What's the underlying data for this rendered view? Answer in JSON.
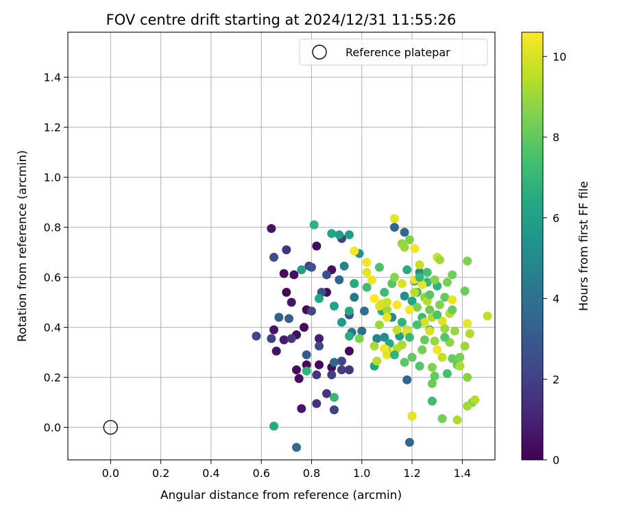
{
  "chart_data": {
    "type": "scatter",
    "title": "FOV centre drift starting at 2024/12/31 11:55:26",
    "xlabel": "Angular distance from reference (arcmin)",
    "ylabel": "Rotation from reference (arcmin)",
    "xlim": [
      -0.17,
      1.53
    ],
    "ylim": [
      -0.13,
      1.58
    ],
    "xticks": [
      0.0,
      0.2,
      0.4,
      0.6,
      0.8,
      1.0,
      1.2,
      1.4
    ],
    "xtick_labels": [
      "0.0",
      "0.2",
      "0.4",
      "0.6",
      "0.8",
      "1.0",
      "1.2",
      "1.4"
    ],
    "yticks": [
      0.0,
      0.2,
      0.4,
      0.6,
      0.8,
      1.0,
      1.2,
      1.4
    ],
    "ytick_labels": [
      "0.0",
      "0.2",
      "0.4",
      "0.6",
      "0.8",
      "1.0",
      "1.2",
      "1.4"
    ],
    "grid": true,
    "legend_position": "top-right",
    "reference": {
      "name": "Reference platepar",
      "x": 0.0,
      "y": 0.0
    },
    "colorbar": {
      "label": "Hours from first FF file",
      "min": 0,
      "max": 10.6,
      "ticks": [
        0,
        2,
        4,
        6,
        8,
        10
      ],
      "tick_labels": [
        "0",
        "2",
        "4",
        "6",
        "8",
        "10"
      ],
      "colormap": "viridis"
    },
    "points": [
      {
        "x": 0.64,
        "y": 0.795,
        "t": 0.5
      },
      {
        "x": 0.73,
        "y": 0.61,
        "t": 0.4
      },
      {
        "x": 0.69,
        "y": 0.615,
        "t": 0.3
      },
      {
        "x": 0.7,
        "y": 0.54,
        "t": 0.2
      },
      {
        "x": 0.82,
        "y": 0.725,
        "t": 0.3
      },
      {
        "x": 0.78,
        "y": 0.47,
        "t": 0.2
      },
      {
        "x": 0.77,
        "y": 0.4,
        "t": 0.3
      },
      {
        "x": 0.74,
        "y": 0.37,
        "t": 0.4
      },
      {
        "x": 0.65,
        "y": 0.39,
        "t": 0.6
      },
      {
        "x": 0.69,
        "y": 0.35,
        "t": 0.8
      },
      {
        "x": 0.66,
        "y": 0.305,
        "t": 0.5
      },
      {
        "x": 0.74,
        "y": 0.23,
        "t": 0.3
      },
      {
        "x": 0.75,
        "y": 0.195,
        "t": 0.4
      },
      {
        "x": 0.76,
        "y": 0.075,
        "t": 0.6
      },
      {
        "x": 0.78,
        "y": 0.25,
        "t": 0.2
      },
      {
        "x": 0.83,
        "y": 0.25,
        "t": 0.2
      },
      {
        "x": 0.83,
        "y": 0.355,
        "t": 0.9
      },
      {
        "x": 0.86,
        "y": 0.54,
        "t": 0.3
      },
      {
        "x": 0.88,
        "y": 0.63,
        "t": 0.3
      },
      {
        "x": 0.88,
        "y": 0.24,
        "t": 0.3
      },
      {
        "x": 0.95,
        "y": 0.305,
        "t": 0.3
      },
      {
        "x": 0.72,
        "y": 0.5,
        "t": 0.6
      },
      {
        "x": 0.7,
        "y": 0.71,
        "t": 1.6
      },
      {
        "x": 0.65,
        "y": 0.68,
        "t": 2.5
      },
      {
        "x": 0.58,
        "y": 0.365,
        "t": 2.2
      },
      {
        "x": 0.64,
        "y": 0.355,
        "t": 2.0
      },
      {
        "x": 0.72,
        "y": 0.355,
        "t": 1.8
      },
      {
        "x": 0.82,
        "y": 0.21,
        "t": 1.7
      },
      {
        "x": 0.82,
        "y": 0.095,
        "t": 1.5
      },
      {
        "x": 0.86,
        "y": 0.135,
        "t": 1.6
      },
      {
        "x": 0.89,
        "y": 0.07,
        "t": 2.1
      },
      {
        "x": 0.88,
        "y": 0.21,
        "t": 1.9
      },
      {
        "x": 0.92,
        "y": 0.23,
        "t": 2.0
      },
      {
        "x": 0.95,
        "y": 0.23,
        "t": 1.7
      },
      {
        "x": 0.92,
        "y": 0.265,
        "t": 2.2
      },
      {
        "x": 0.83,
        "y": 0.325,
        "t": 2.4
      },
      {
        "x": 0.8,
        "y": 0.465,
        "t": 2.3
      },
      {
        "x": 0.84,
        "y": 0.54,
        "t": 2.7
      },
      {
        "x": 0.86,
        "y": 0.61,
        "t": 2.5
      },
      {
        "x": 0.79,
        "y": 0.645,
        "t": 2.0
      },
      {
        "x": 0.8,
        "y": 0.64,
        "t": 2.8
      },
      {
        "x": 0.92,
        "y": 0.755,
        "t": 2.0
      },
      {
        "x": 0.95,
        "y": 0.45,
        "t": 2.6
      },
      {
        "x": 0.78,
        "y": 0.29,
        "t": 3.0
      },
      {
        "x": 0.71,
        "y": 0.435,
        "t": 3.1
      },
      {
        "x": 0.67,
        "y": 0.44,
        "t": 3.3
      },
      {
        "x": 0.91,
        "y": 0.59,
        "t": 3.4
      },
      {
        "x": 0.89,
        "y": 0.26,
        "t": 3.6
      },
      {
        "x": 0.74,
        "y": -0.08,
        "t": 3.7
      },
      {
        "x": 1.19,
        "y": -0.06,
        "t": 3.5
      },
      {
        "x": 1.18,
        "y": 0.19,
        "t": 3.6
      },
      {
        "x": 1.2,
        "y": 0.045,
        "t": 3.2
      },
      {
        "x": 1.13,
        "y": 0.8,
        "t": 3.5
      },
      {
        "x": 1.17,
        "y": 0.78,
        "t": 3.4
      },
      {
        "x": 1.0,
        "y": 0.385,
        "t": 3.8
      },
      {
        "x": 1.01,
        "y": 0.465,
        "t": 4.0
      },
      {
        "x": 0.97,
        "y": 0.52,
        "t": 4.3
      },
      {
        "x": 0.93,
        "y": 0.645,
        "t": 4.6
      },
      {
        "x": 0.96,
        "y": 0.38,
        "t": 4.1
      },
      {
        "x": 1.06,
        "y": 0.355,
        "t": 4.8
      },
      {
        "x": 1.09,
        "y": 0.36,
        "t": 5.0
      },
      {
        "x": 1.12,
        "y": 0.44,
        "t": 4.9
      },
      {
        "x": 1.17,
        "y": 0.525,
        "t": 5.2
      },
      {
        "x": 1.21,
        "y": 0.585,
        "t": 5.4
      },
      {
        "x": 1.23,
        "y": 0.62,
        "t": 5.1
      },
      {
        "x": 0.97,
        "y": 0.575,
        "t": 5.3
      },
      {
        "x": 0.99,
        "y": 0.695,
        "t": 5.5
      },
      {
        "x": 0.95,
        "y": 0.77,
        "t": 5.8
      },
      {
        "x": 0.91,
        "y": 0.77,
        "t": 6.0
      },
      {
        "x": 0.88,
        "y": 0.775,
        "t": 6.2
      },
      {
        "x": 0.81,
        "y": 0.81,
        "t": 6.8
      },
      {
        "x": 0.76,
        "y": 0.63,
        "t": 5.9
      },
      {
        "x": 0.83,
        "y": 0.515,
        "t": 6.3
      },
      {
        "x": 0.89,
        "y": 0.485,
        "t": 6.1
      },
      {
        "x": 0.92,
        "y": 0.42,
        "t": 5.7
      },
      {
        "x": 0.95,
        "y": 0.465,
        "t": 6.4
      },
      {
        "x": 0.95,
        "y": 0.365,
        "t": 6.6
      },
      {
        "x": 0.78,
        "y": 0.225,
        "t": 6.9
      },
      {
        "x": 0.89,
        "y": 0.12,
        "t": 7.0
      },
      {
        "x": 0.65,
        "y": 0.005,
        "t": 6.5
      },
      {
        "x": 1.05,
        "y": 0.245,
        "t": 6.2
      },
      {
        "x": 1.08,
        "y": 0.465,
        "t": 6.7
      },
      {
        "x": 1.11,
        "y": 0.335,
        "t": 6.4
      },
      {
        "x": 1.15,
        "y": 0.365,
        "t": 6.0
      },
      {
        "x": 1.16,
        "y": 0.42,
        "t": 6.8
      },
      {
        "x": 1.18,
        "y": 0.63,
        "t": 6.6
      },
      {
        "x": 1.2,
        "y": 0.505,
        "t": 6.2
      },
      {
        "x": 1.22,
        "y": 0.54,
        "t": 7.1
      },
      {
        "x": 1.24,
        "y": 0.44,
        "t": 7.2
      },
      {
        "x": 1.26,
        "y": 0.58,
        "t": 6.9
      },
      {
        "x": 1.28,
        "y": 0.105,
        "t": 7.3
      },
      {
        "x": 1.27,
        "y": 0.39,
        "t": 7.0
      },
      {
        "x": 1.3,
        "y": 0.565,
        "t": 6.8
      },
      {
        "x": 1.34,
        "y": 0.215,
        "t": 7.4
      },
      {
        "x": 1.02,
        "y": 0.56,
        "t": 7.3
      },
      {
        "x": 1.07,
        "y": 0.64,
        "t": 7.6
      },
      {
        "x": 1.12,
        "y": 0.575,
        "t": 7.8
      },
      {
        "x": 1.17,
        "y": 0.26,
        "t": 7.9
      },
      {
        "x": 1.2,
        "y": 0.28,
        "t": 8.0
      },
      {
        "x": 1.23,
        "y": 0.245,
        "t": 7.7
      },
      {
        "x": 1.25,
        "y": 0.35,
        "t": 8.1
      },
      {
        "x": 1.28,
        "y": 0.175,
        "t": 8.2
      },
      {
        "x": 1.29,
        "y": 0.205,
        "t": 8.0
      },
      {
        "x": 1.32,
        "y": 0.035,
        "t": 8.3
      },
      {
        "x": 1.36,
        "y": 0.275,
        "t": 8.1
      },
      {
        "x": 1.38,
        "y": 0.25,
        "t": 7.9
      },
      {
        "x": 1.39,
        "y": 0.28,
        "t": 8.4
      },
      {
        "x": 1.41,
        "y": 0.545,
        "t": 8.2
      },
      {
        "x": 1.42,
        "y": 0.665,
        "t": 8.5
      },
      {
        "x": 1.36,
        "y": 0.61,
        "t": 8.3
      },
      {
        "x": 1.33,
        "y": 0.52,
        "t": 8.0
      },
      {
        "x": 1.31,
        "y": 0.49,
        "t": 8.6
      },
      {
        "x": 1.29,
        "y": 0.59,
        "t": 8.7
      },
      {
        "x": 1.27,
        "y": 0.47,
        "t": 8.2
      },
      {
        "x": 1.25,
        "y": 0.52,
        "t": 8.8
      },
      {
        "x": 1.22,
        "y": 0.48,
        "t": 8.4
      },
      {
        "x": 1.19,
        "y": 0.75,
        "t": 8.6
      },
      {
        "x": 1.17,
        "y": 0.72,
        "t": 9.0
      },
      {
        "x": 1.16,
        "y": 0.735,
        "t": 8.9
      },
      {
        "x": 1.13,
        "y": 0.6,
        "t": 8.7
      },
      {
        "x": 1.1,
        "y": 0.47,
        "t": 9.1
      },
      {
        "x": 1.07,
        "y": 0.41,
        "t": 9.0
      },
      {
        "x": 1.05,
        "y": 0.325,
        "t": 9.2
      },
      {
        "x": 1.06,
        "y": 0.265,
        "t": 9.4
      },
      {
        "x": 1.1,
        "y": 0.31,
        "t": 9.3
      },
      {
        "x": 1.14,
        "y": 0.315,
        "t": 9.5
      },
      {
        "x": 1.16,
        "y": 0.33,
        "t": 9.2
      },
      {
        "x": 1.18,
        "y": 0.39,
        "t": 9.6
      },
      {
        "x": 1.21,
        "y": 0.54,
        "t": 9.4
      },
      {
        "x": 1.23,
        "y": 0.65,
        "t": 9.7
      },
      {
        "x": 1.26,
        "y": 0.505,
        "t": 9.5
      },
      {
        "x": 1.28,
        "y": 0.44,
        "t": 9.3
      },
      {
        "x": 1.3,
        "y": 0.68,
        "t": 9.8
      },
      {
        "x": 1.31,
        "y": 0.67,
        "t": 9.1
      },
      {
        "x": 1.33,
        "y": 0.395,
        "t": 9.0
      },
      {
        "x": 1.35,
        "y": 0.34,
        "t": 8.8
      },
      {
        "x": 1.37,
        "y": 0.385,
        "t": 8.9
      },
      {
        "x": 1.39,
        "y": 0.245,
        "t": 9.2
      },
      {
        "x": 1.41,
        "y": 0.325,
        "t": 9.0
      },
      {
        "x": 1.42,
        "y": 0.2,
        "t": 8.7
      },
      {
        "x": 1.43,
        "y": 0.375,
        "t": 9.3
      },
      {
        "x": 1.44,
        "y": 0.1,
        "t": 8.5
      },
      {
        "x": 1.45,
        "y": 0.11,
        "t": 9.4
      },
      {
        "x": 1.42,
        "y": 0.085,
        "t": 9.1
      },
      {
        "x": 1.38,
        "y": 0.03,
        "t": 9.3
      },
      {
        "x": 1.5,
        "y": 0.445,
        "t": 9.6
      },
      {
        "x": 1.42,
        "y": 0.415,
        "t": 10.2
      },
      {
        "x": 1.36,
        "y": 0.51,
        "t": 10.3
      },
      {
        "x": 1.32,
        "y": 0.425,
        "t": 10.1
      },
      {
        "x": 1.3,
        "y": 0.31,
        "t": 10.4
      },
      {
        "x": 1.27,
        "y": 0.385,
        "t": 10.0
      },
      {
        "x": 1.24,
        "y": 0.57,
        "t": 10.2
      },
      {
        "x": 1.21,
        "y": 0.59,
        "t": 10.3
      },
      {
        "x": 1.19,
        "y": 0.47,
        "t": 10.5
      },
      {
        "x": 1.18,
        "y": 0.38,
        "t": 10.1
      },
      {
        "x": 1.21,
        "y": 0.715,
        "t": 10.4
      },
      {
        "x": 1.13,
        "y": 0.835,
        "t": 10.2
      },
      {
        "x": 1.16,
        "y": 0.575,
        "t": 10.0
      },
      {
        "x": 1.14,
        "y": 0.49,
        "t": 10.5
      },
      {
        "x": 1.1,
        "y": 0.44,
        "t": 10.3
      },
      {
        "x": 1.09,
        "y": 0.315,
        "t": 10.4
      },
      {
        "x": 1.1,
        "y": 0.29,
        "t": 10.2
      },
      {
        "x": 1.07,
        "y": 0.485,
        "t": 10.1
      },
      {
        "x": 1.05,
        "y": 0.515,
        "t": 10.6
      },
      {
        "x": 1.08,
        "y": 0.495,
        "t": 10.0
      },
      {
        "x": 1.04,
        "y": 0.59,
        "t": 10.3
      },
      {
        "x": 1.02,
        "y": 0.62,
        "t": 10.2
      },
      {
        "x": 1.02,
        "y": 0.66,
        "t": 10.4
      },
      {
        "x": 0.97,
        "y": 0.705,
        "t": 10.5
      },
      {
        "x": 1.2,
        "y": 0.045,
        "t": 10.2
      },
      {
        "x": 1.1,
        "y": 0.5,
        "t": 9.8
      },
      {
        "x": 1.14,
        "y": 0.39,
        "t": 9.7
      },
      {
        "x": 1.25,
        "y": 0.42,
        "t": 9.9
      },
      {
        "x": 1.35,
        "y": 0.455,
        "t": 9.5
      },
      {
        "x": 1.29,
        "y": 0.345,
        "t": 8.9
      },
      {
        "x": 1.32,
        "y": 0.28,
        "t": 9.6
      },
      {
        "x": 1.28,
        "y": 0.24,
        "t": 8.6
      },
      {
        "x": 1.24,
        "y": 0.31,
        "t": 8.3
      },
      {
        "x": 1.34,
        "y": 0.58,
        "t": 8.4
      },
      {
        "x": 1.27,
        "y": 0.53,
        "t": 7.9
      },
      {
        "x": 1.3,
        "y": 0.45,
        "t": 7.6
      },
      {
        "x": 1.33,
        "y": 0.36,
        "t": 7.8
      },
      {
        "x": 1.36,
        "y": 0.47,
        "t": 8.1
      },
      {
        "x": 1.22,
        "y": 0.41,
        "t": 7.5
      },
      {
        "x": 1.19,
        "y": 0.36,
        "t": 7.2
      },
      {
        "x": 1.13,
        "y": 0.29,
        "t": 6.9
      },
      {
        "x": 1.23,
        "y": 0.6,
        "t": 7.0
      },
      {
        "x": 1.26,
        "y": 0.62,
        "t": 7.4
      },
      {
        "x": 1.09,
        "y": 0.54,
        "t": 7.2
      },
      {
        "x": 0.99,
        "y": 0.355,
        "t": 8.5
      },
      {
        "x": 0.97,
        "y": 0.575,
        "t": 6.5
      }
    ]
  }
}
